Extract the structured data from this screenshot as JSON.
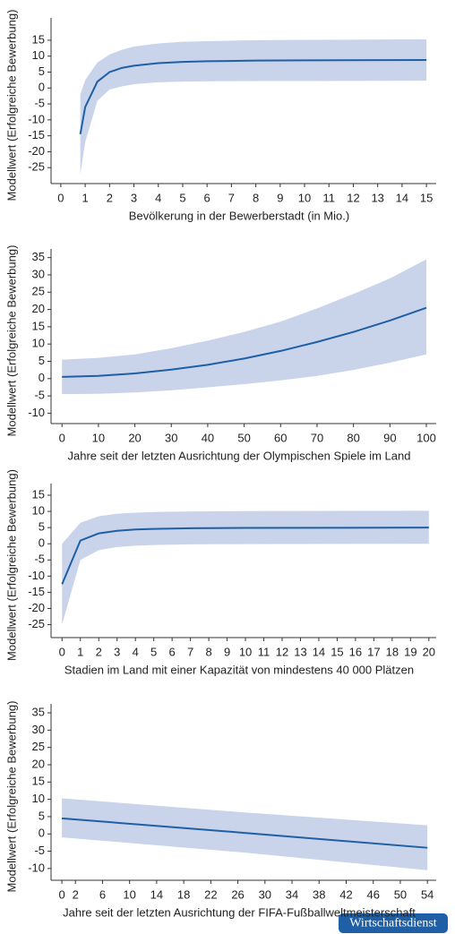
{
  "brand": "Wirtschaftsdienst",
  "chart_data": [
    {
      "type": "line",
      "ylabel": "Modellwert (Erfolgreiche Bewerbung)",
      "xlabel": "Bevölkerung in der Bewerberstadt (in Mio.)",
      "x": [
        0.8,
        1,
        1.5,
        2,
        2.5,
        3,
        4,
        5,
        6,
        8,
        10,
        15
      ],
      "series": [
        {
          "color": "#1f5fa6",
          "band_color": "#c9d4ea",
          "values": [
            -14.5,
            -6,
            2,
            5,
            6.3,
            7,
            7.8,
            8.2,
            8.4,
            8.6,
            8.7,
            8.8
          ],
          "lower": [
            -27,
            -17,
            -4,
            -0.5,
            0.5,
            1.2,
            1.8,
            2,
            2.1,
            2.2,
            2.2,
            2.3
          ],
          "upper": [
            -2,
            2.5,
            8,
            10.5,
            12,
            13,
            14,
            14.5,
            14.7,
            15,
            15.1,
            15.3
          ]
        }
      ],
      "xlim": [
        -0.4,
        15.4
      ],
      "ylim": [
        -30,
        22
      ],
      "xticks": [
        0,
        1,
        2,
        3,
        4,
        5,
        6,
        7,
        8,
        9,
        10,
        11,
        12,
        13,
        14,
        15
      ],
      "yticks": [
        15,
        10,
        5,
        0,
        -5,
        -10,
        -15,
        -20,
        -25
      ]
    },
    {
      "type": "line",
      "ylabel": "Modellwert (Erfolgreiche Bewerbung)",
      "xlabel": "Jahre seit der letzten Ausrichtung der Olympischen Spiele im Land",
      "x": [
        0,
        10,
        20,
        30,
        40,
        50,
        60,
        70,
        80,
        90,
        100
      ],
      "series": [
        {
          "color": "#1f5fa6",
          "band_color": "#c9d4ea",
          "values": [
            0.5,
            0.8,
            1.5,
            2.6,
            4,
            5.8,
            8,
            10.6,
            13.5,
            16.8,
            20.5
          ],
          "lower": [
            -4.5,
            -4.4,
            -4,
            -3.4,
            -2.5,
            -1.6,
            -0.5,
            0.8,
            2.5,
            4.6,
            7
          ],
          "upper": [
            5.5,
            6,
            7,
            8.8,
            11,
            13.5,
            16.5,
            20.3,
            24.5,
            29,
            34.5
          ]
        }
      ],
      "xlim": [
        -3,
        102.7
      ],
      "ylim": [
        -13,
        37.5
      ],
      "xticks": [
        0,
        10,
        20,
        30,
        40,
        50,
        60,
        70,
        80,
        90,
        100
      ],
      "yticks": [
        35,
        30,
        25,
        20,
        15,
        10,
        5,
        0,
        -5,
        -10
      ]
    },
    {
      "type": "line",
      "ylabel": "Modellwert (Erfolgreiche Bewerbung)",
      "xlabel": "Stadien im Land mit einer Kapazität von mindestens 40 000 Plätzen",
      "x": [
        0,
        1,
        2,
        3,
        4,
        5,
        7,
        10,
        20
      ],
      "series": [
        {
          "color": "#1f5fa6",
          "band_color": "#c9d4ea",
          "values": [
            -12.5,
            1,
            3.2,
            4,
            4.4,
            4.6,
            4.8,
            4.9,
            5
          ],
          "lower": [
            -25,
            -5,
            -2,
            -1,
            -0.6,
            -0.4,
            -0.2,
            -0.1,
            0
          ],
          "upper": [
            0,
            6.5,
            8.5,
            9.3,
            9.6,
            9.8,
            10,
            10.1,
            10.2
          ]
        }
      ],
      "xlim": [
        -0.6,
        20.4
      ],
      "ylim": [
        -29,
        18.6
      ],
      "xticks": [
        0,
        1,
        2,
        3,
        4,
        5,
        6,
        7,
        8,
        9,
        10,
        11,
        12,
        13,
        14,
        15,
        16,
        17,
        18,
        19,
        20
      ],
      "yticks": [
        15,
        10,
        5,
        0,
        -5,
        -10,
        -15,
        -20,
        -25
      ]
    },
    {
      "type": "line",
      "ylabel": "Modellwert (Erfolgreiche Bewerbung)",
      "xlabel": "Jahre seit der letzten Ausrichtung der FIFA-Fußballweltmeisterschaft",
      "x": [
        0,
        27,
        54
      ],
      "series": [
        {
          "color": "#1f5fa6",
          "band_color": "#c9d4ea",
          "values": [
            4.5,
            0.3,
            -4
          ],
          "lower": [
            -1,
            -5.4,
            -10.5
          ],
          "upper": [
            10.3,
            6.2,
            2.5
          ]
        }
      ],
      "xlim": [
        -1.6,
        55.3
      ],
      "ylim": [
        -13.4,
        37.6
      ],
      "xticks": [
        0,
        2,
        6,
        10,
        14,
        18,
        22,
        26,
        30,
        34,
        38,
        42,
        46,
        50,
        54
      ],
      "yticks": [
        35,
        30,
        25,
        20,
        15,
        10,
        5,
        0,
        -5,
        -10
      ]
    }
  ]
}
